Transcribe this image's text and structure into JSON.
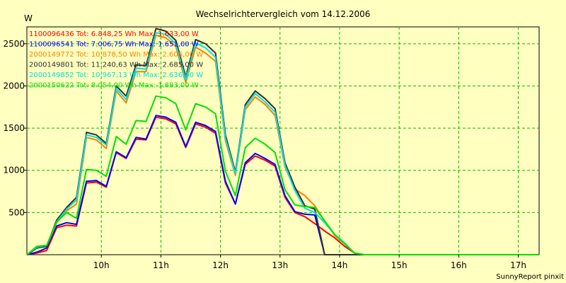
{
  "chart_data": {
    "type": "line",
    "title": "Wechselrichtervergleich vom 14.12.2006",
    "ylabel": "W",
    "xlabel": "",
    "footer": "SunnyReport pinxit",
    "grid": true,
    "legend_position": "top-left",
    "xlim": [
      8.75,
      17.35
    ],
    "ylim": [
      0,
      2700
    ],
    "x_ticks": [
      10,
      11,
      12,
      13,
      14,
      15,
      16,
      17
    ],
    "x_tick_labels": [
      "10h",
      "11h",
      "12h",
      "13h",
      "14h",
      "15h",
      "16h",
      "17h"
    ],
    "y_ticks": [
      500,
      1000,
      1500,
      2000,
      2500
    ],
    "y_tick_labels": [
      "500",
      "1000",
      "1500",
      "2000",
      "2500"
    ],
    "x": [
      8.75,
      8.917,
      9.083,
      9.25,
      9.417,
      9.583,
      9.75,
      9.917,
      10.083,
      10.25,
      10.417,
      10.583,
      10.75,
      10.917,
      11.083,
      11.25,
      11.417,
      11.583,
      11.75,
      11.917,
      12.083,
      12.25,
      12.417,
      12.583,
      12.75,
      12.917,
      13.083,
      13.25,
      13.417,
      13.583,
      13.75,
      13.917,
      14.083,
      14.25,
      14.417,
      14.583,
      14.75,
      14.917,
      15.083,
      15.25,
      15.417,
      15.583,
      15.75,
      15.917,
      16.083,
      16.25,
      16.417,
      16.583,
      16.75,
      16.917,
      17.083,
      17.25,
      17.35
    ],
    "series": [
      {
        "name": "1100096436",
        "label": "1100096436 Tot: 6.848,25 Wh Max: 1.633,00 W",
        "color": "#ff0000",
        "values": [
          0,
          20,
          50,
          320,
          350,
          340,
          850,
          860,
          800,
          1210,
          1140,
          1370,
          1360,
          1630,
          1610,
          1550,
          1270,
          1550,
          1510,
          1440,
          850,
          600,
          1070,
          1170,
          1120,
          1050,
          680,
          500,
          450,
          370,
          280,
          200,
          100,
          20,
          0,
          0,
          0,
          0,
          0,
          0,
          0,
          0,
          0,
          0,
          0,
          0,
          0,
          0,
          0,
          0,
          0,
          0,
          0
        ]
      },
      {
        "name": "1100096541",
        "label": "1100096541 Tot: 7.006,75 Wh Max: 1.651,00 W",
        "color": "#0000ff",
        "values": [
          0,
          30,
          80,
          340,
          380,
          360,
          870,
          880,
          810,
          1220,
          1150,
          1390,
          1370,
          1650,
          1630,
          1570,
          1280,
          1570,
          1530,
          1460,
          870,
          600,
          1090,
          1200,
          1140,
          1070,
          700,
          510,
          480,
          470,
          0,
          0,
          0,
          0,
          0,
          0,
          0,
          0,
          0,
          0,
          0,
          0,
          0,
          0,
          0,
          0,
          0,
          0,
          0,
          0,
          0,
          0,
          0
        ]
      },
      {
        "name": "2000149772",
        "label": "2000149772 Tot: 10.878,50 Wh Max: 2.606,00 W",
        "color": "#ff8000",
        "values": [
          0,
          80,
          100,
          380,
          520,
          600,
          1390,
          1360,
          1260,
          1940,
          1800,
          2170,
          2170,
          2600,
          2570,
          2470,
          2040,
          2460,
          2390,
          2290,
          1350,
          940,
          1720,
          1870,
          1780,
          1650,
          1040,
          780,
          700,
          580,
          400,
          230,
          130,
          20,
          0,
          0,
          0,
          0,
          0,
          0,
          0,
          0,
          0,
          0,
          0,
          0,
          0,
          0,
          0,
          0,
          0,
          0,
          0
        ]
      },
      {
        "name": "2000149801",
        "label": "2000149801 Tot: 11.240,63 Wh Max: 2.685,00 W",
        "color": "#303030",
        "values": [
          0,
          80,
          100,
          410,
          560,
          680,
          1450,
          1420,
          1320,
          2000,
          1880,
          2250,
          2240,
          2680,
          2650,
          2540,
          2110,
          2550,
          2500,
          2390,
          1420,
          980,
          1780,
          1940,
          1850,
          1730,
          1090,
          800,
          580,
          540,
          0,
          0,
          0,
          0,
          0,
          0,
          0,
          0,
          0,
          0,
          0,
          0,
          0,
          0,
          0,
          0,
          0,
          0,
          0,
          0,
          0,
          0,
          0
        ]
      },
      {
        "name": "2000149852",
        "label": "2000149852 Tot: 10.967,13 Wh Max: 2.636,00 W",
        "color": "#00e0e0",
        "values": [
          0,
          90,
          110,
          390,
          540,
          650,
          1420,
          1390,
          1300,
          1970,
          1840,
          2210,
          2200,
          2630,
          2610,
          2500,
          2070,
          2510,
          2450,
          2340,
          1380,
          960,
          1750,
          1910,
          1810,
          1690,
          1060,
          760,
          550,
          500,
          380,
          240,
          140,
          20,
          0,
          0,
          0,
          0,
          0,
          0,
          0,
          0,
          0,
          0,
          0,
          0,
          0,
          0,
          0,
          0,
          0,
          0,
          0
        ]
      },
      {
        "name": "2000150622",
        "label": "2000150622 Tot: 8.054,00 Wh Max: 1.883,00 W",
        "color": "#00e000",
        "values": [
          0,
          100,
          110,
          390,
          500,
          430,
          1010,
          1000,
          930,
          1400,
          1310,
          1590,
          1580,
          1880,
          1860,
          1790,
          1480,
          1790,
          1750,
          1670,
          990,
          700,
          1270,
          1380,
          1310,
          1210,
          770,
          590,
          570,
          560,
          400,
          240,
          130,
          20,
          0,
          0,
          0,
          0,
          0,
          0,
          0,
          0,
          0,
          0,
          0,
          0,
          0,
          0,
          0,
          0,
          0,
          0,
          0
        ]
      }
    ]
  }
}
